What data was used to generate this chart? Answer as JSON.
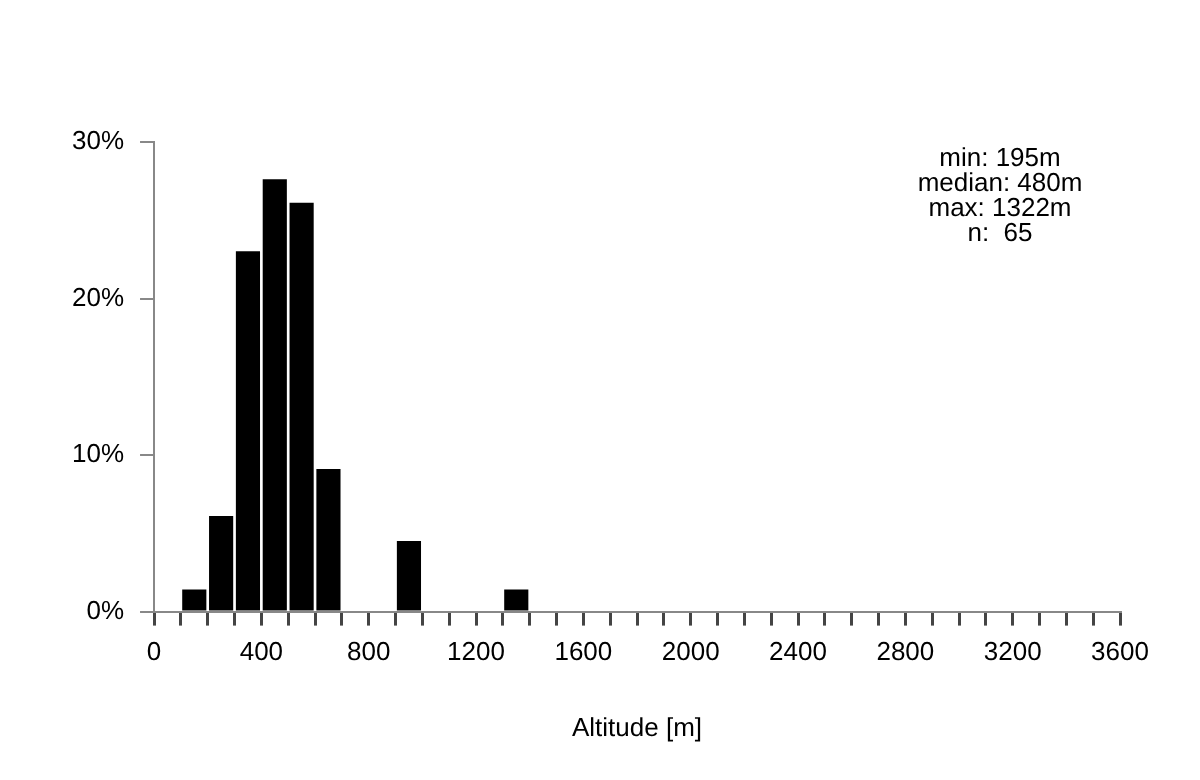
{
  "chart_data": {
    "type": "histogram",
    "xlabel": "Altitude [m]",
    "bins": [
      100,
      200,
      300,
      400,
      500,
      600,
      700,
      800,
      900,
      1000,
      1100,
      1200,
      1300,
      1400
    ],
    "values": [
      1.5,
      6.2,
      23.1,
      27.7,
      26.2,
      9.2,
      0,
      0,
      4.6,
      0,
      0,
      0,
      1.5
    ],
    "color": "#000000",
    "xlim": [
      0,
      3600
    ],
    "xticks": [
      0,
      {
        "value": 100,
        "label": null
      },
      {
        "value": 200,
        "label": null
      },
      {
        "value": 300,
        "label": null
      },
      400,
      {
        "value": 500,
        "label": null
      },
      {
        "value": 600,
        "label": null
      },
      {
        "value": 700,
        "label": null
      },
      800,
      {
        "value": 900,
        "label": null
      },
      {
        "value": 1000,
        "label": null
      },
      {
        "value": 1100,
        "label": null
      },
      1200,
      {
        "value": 1300,
        "label": null
      },
      {
        "value": 1400,
        "label": null
      },
      {
        "value": 1500,
        "label": null
      },
      1600,
      {
        "value": 1700,
        "label": null
      },
      {
        "value": 1800,
        "label": null
      },
      {
        "value": 1900,
        "label": null
      },
      2000,
      {
        "value": 2100,
        "label": null
      },
      {
        "value": 2200,
        "label": null
      },
      {
        "value": 2300,
        "label": null
      },
      2400,
      {
        "value": 2500,
        "label": null
      },
      {
        "value": 2600,
        "label": null
      },
      {
        "value": 2700,
        "label": null
      },
      2800,
      {
        "value": 2900,
        "label": null
      },
      {
        "value": 3000,
        "label": null
      },
      {
        "value": 3100,
        "label": null
      },
      3200,
      {
        "value": 3300,
        "label": null
      },
      {
        "value": 3400,
        "label": null
      },
      {
        "value": 3500,
        "label": null
      },
      3600
    ],
    "ylim": [
      0,
      30
    ],
    "yticks": [
      {
        "value": 0,
        "label": "0%"
      },
      {
        "value": 10,
        "label": "10%"
      },
      {
        "value": 20,
        "label": "20%"
      },
      {
        "value": 30,
        "label": "30%"
      }
    ],
    "grid": false,
    "annotations": [
      "min: 195m",
      "median: 480m",
      "max: 1322m",
      "n:  65"
    ]
  }
}
